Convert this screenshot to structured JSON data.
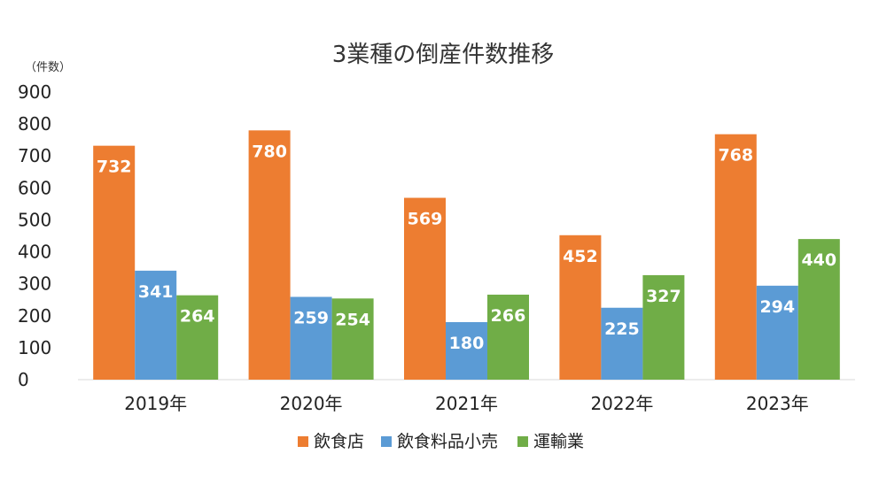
{
  "chart_data": {
    "type": "bar",
    "title": "3業種の倒産件数推移",
    "unit_label": "（件数）",
    "categories": [
      "2019年",
      "2020年",
      "2021年",
      "2022年",
      "2023年"
    ],
    "series": [
      {
        "name": "飲食店",
        "color": "#ED7D31",
        "values": [
          732,
          780,
          569,
          452,
          768
        ]
      },
      {
        "name": "飲食料品小売",
        "color": "#5B9BD5",
        "values": [
          341,
          259,
          180,
          225,
          294
        ]
      },
      {
        "name": "運輸業",
        "color": "#70AD47",
        "values": [
          264,
          254,
          266,
          327,
          440
        ]
      }
    ],
    "yticks": [
      "0",
      "100",
      "200",
      "300",
      "400",
      "500",
      "600",
      "700",
      "800",
      "900"
    ],
    "ylim": [
      0,
      900
    ],
    "grid": false,
    "legend_position": "bottom",
    "data_labels": true
  }
}
